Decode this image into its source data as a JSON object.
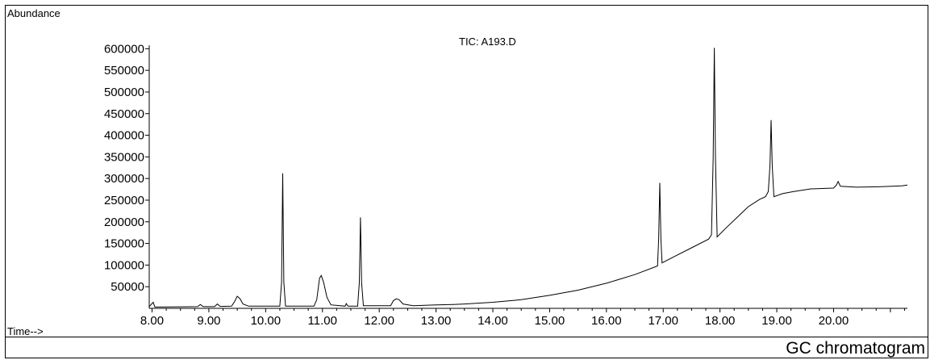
{
  "chart_data": {
    "type": "line",
    "title": "TIC: A193.D",
    "ylabel": "Abundance",
    "xlabel": "Time-->",
    "x_tick_labels": [
      "8.00",
      "9.00",
      "10.00",
      "11.00",
      "12.00",
      "13.00",
      "14.00",
      "15.00",
      "16.00",
      "17.00",
      "18.00",
      "19.00",
      "20.00"
    ],
    "y_tick_labels": [
      "50000",
      "100000",
      "150000",
      "200000",
      "250000",
      "300000",
      "350000",
      "400000",
      "450000",
      "500000",
      "550000",
      "600000"
    ],
    "xlim": [
      7.95,
      21.3
    ],
    "ylim": [
      0,
      610000
    ],
    "grid": false,
    "series": [
      {
        "points": [
          [
            7.95,
            4000
          ],
          [
            8.02,
            14000
          ],
          [
            8.05,
            3000
          ],
          [
            8.5,
            3500
          ],
          [
            8.8,
            4000
          ],
          [
            8.85,
            9000
          ],
          [
            8.9,
            4000
          ],
          [
            9.1,
            4000
          ],
          [
            9.15,
            10000
          ],
          [
            9.2,
            4500
          ],
          [
            9.4,
            5000
          ],
          [
            9.45,
            15000
          ],
          [
            9.5,
            28000
          ],
          [
            9.55,
            22000
          ],
          [
            9.6,
            10000
          ],
          [
            9.7,
            5000
          ],
          [
            10.25,
            5000
          ],
          [
            10.28,
            60000
          ],
          [
            10.3,
            312000
          ],
          [
            10.32,
            60000
          ],
          [
            10.35,
            5000
          ],
          [
            10.85,
            5000
          ],
          [
            10.9,
            20000
          ],
          [
            10.95,
            70000
          ],
          [
            10.98,
            76000
          ],
          [
            11.02,
            60000
          ],
          [
            11.08,
            25000
          ],
          [
            11.15,
            8000
          ],
          [
            11.4,
            5000
          ],
          [
            11.42,
            11000
          ],
          [
            11.45,
            5000
          ],
          [
            11.62,
            5000
          ],
          [
            11.65,
            60000
          ],
          [
            11.67,
            210000
          ],
          [
            11.69,
            60000
          ],
          [
            11.72,
            6000
          ],
          [
            12.2,
            6000
          ],
          [
            12.25,
            18000
          ],
          [
            12.3,
            22000
          ],
          [
            12.35,
            20000
          ],
          [
            12.42,
            10000
          ],
          [
            12.6,
            6000
          ],
          [
            13.0,
            8000
          ],
          [
            13.3,
            9000
          ],
          [
            13.5,
            10000
          ],
          [
            14.0,
            14000
          ],
          [
            14.5,
            20000
          ],
          [
            15.0,
            30000
          ],
          [
            15.5,
            42000
          ],
          [
            16.0,
            58000
          ],
          [
            16.5,
            78000
          ],
          [
            16.9,
            98000
          ],
          [
            16.92,
            160000
          ],
          [
            16.94,
            290000
          ],
          [
            16.96,
            160000
          ],
          [
            16.98,
            105000
          ],
          [
            17.2,
            120000
          ],
          [
            17.5,
            140000
          ],
          [
            17.8,
            160000
          ],
          [
            17.85,
            170000
          ],
          [
            17.88,
            350000
          ],
          [
            17.9,
            602000
          ],
          [
            17.92,
            350000
          ],
          [
            17.95,
            165000
          ],
          [
            18.1,
            185000
          ],
          [
            18.3,
            210000
          ],
          [
            18.5,
            235000
          ],
          [
            18.7,
            252000
          ],
          [
            18.8,
            258000
          ],
          [
            18.85,
            270000
          ],
          [
            18.88,
            330000
          ],
          [
            18.9,
            435000
          ],
          [
            18.92,
            330000
          ],
          [
            18.95,
            258000
          ],
          [
            19.1,
            265000
          ],
          [
            19.3,
            270000
          ],
          [
            19.6,
            276000
          ],
          [
            20.0,
            278000
          ],
          [
            20.05,
            285000
          ],
          [
            20.08,
            293000
          ],
          [
            20.12,
            282000
          ],
          [
            20.4,
            280000
          ],
          [
            20.8,
            281000
          ],
          [
            21.2,
            283000
          ],
          [
            21.3,
            285000
          ]
        ]
      }
    ]
  },
  "caption": "GC chromatogram"
}
